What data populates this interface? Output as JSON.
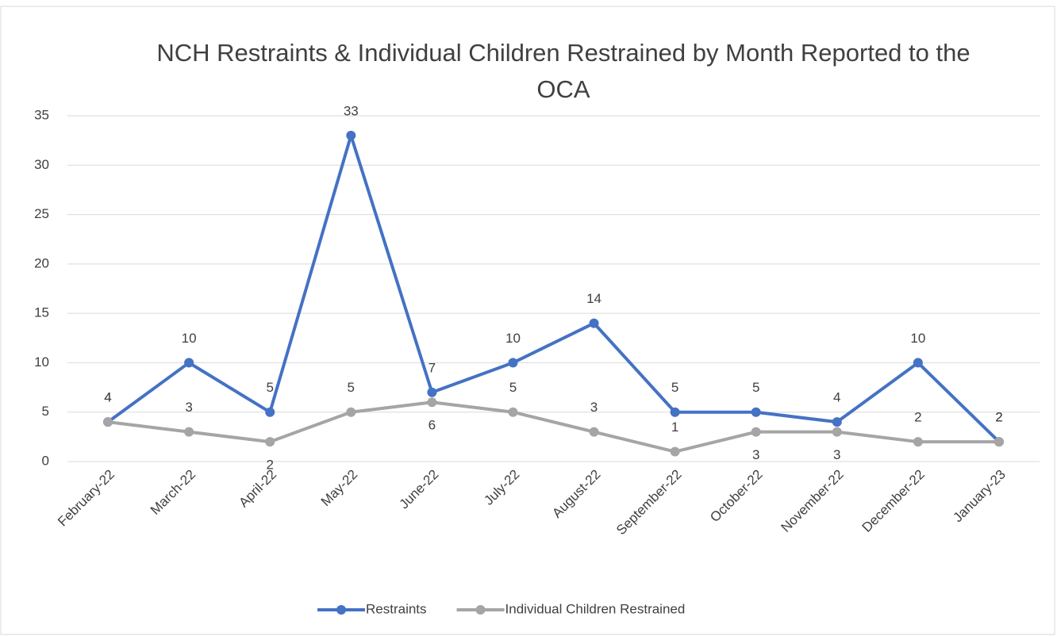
{
  "chart_data": {
    "type": "line",
    "title": "NCH Restraints & Individual Children Restrained by Month Reported to the OCA",
    "categories": [
      "February-22",
      "March-22",
      "April-22",
      "May-22",
      "June-22",
      "July-22",
      "August-22",
      "September-22",
      "October-22",
      "November-22",
      "December-22",
      "January-23"
    ],
    "series": [
      {
        "name": "Restraints",
        "color": "#4472c4",
        "values": [
          4,
          10,
          5,
          33,
          7,
          10,
          14,
          5,
          5,
          4,
          10,
          2
        ]
      },
      {
        "name": "Individual Children Restrained",
        "color": "#a5a5a5",
        "values": [
          4,
          3,
          2,
          5,
          6,
          5,
          3,
          1,
          3,
          3,
          2,
          2
        ]
      }
    ],
    "ylim": [
      0,
      35
    ],
    "yticks": [
      0,
      5,
      10,
      15,
      20,
      25,
      30,
      35
    ],
    "grid": true,
    "legend": "bottom"
  }
}
